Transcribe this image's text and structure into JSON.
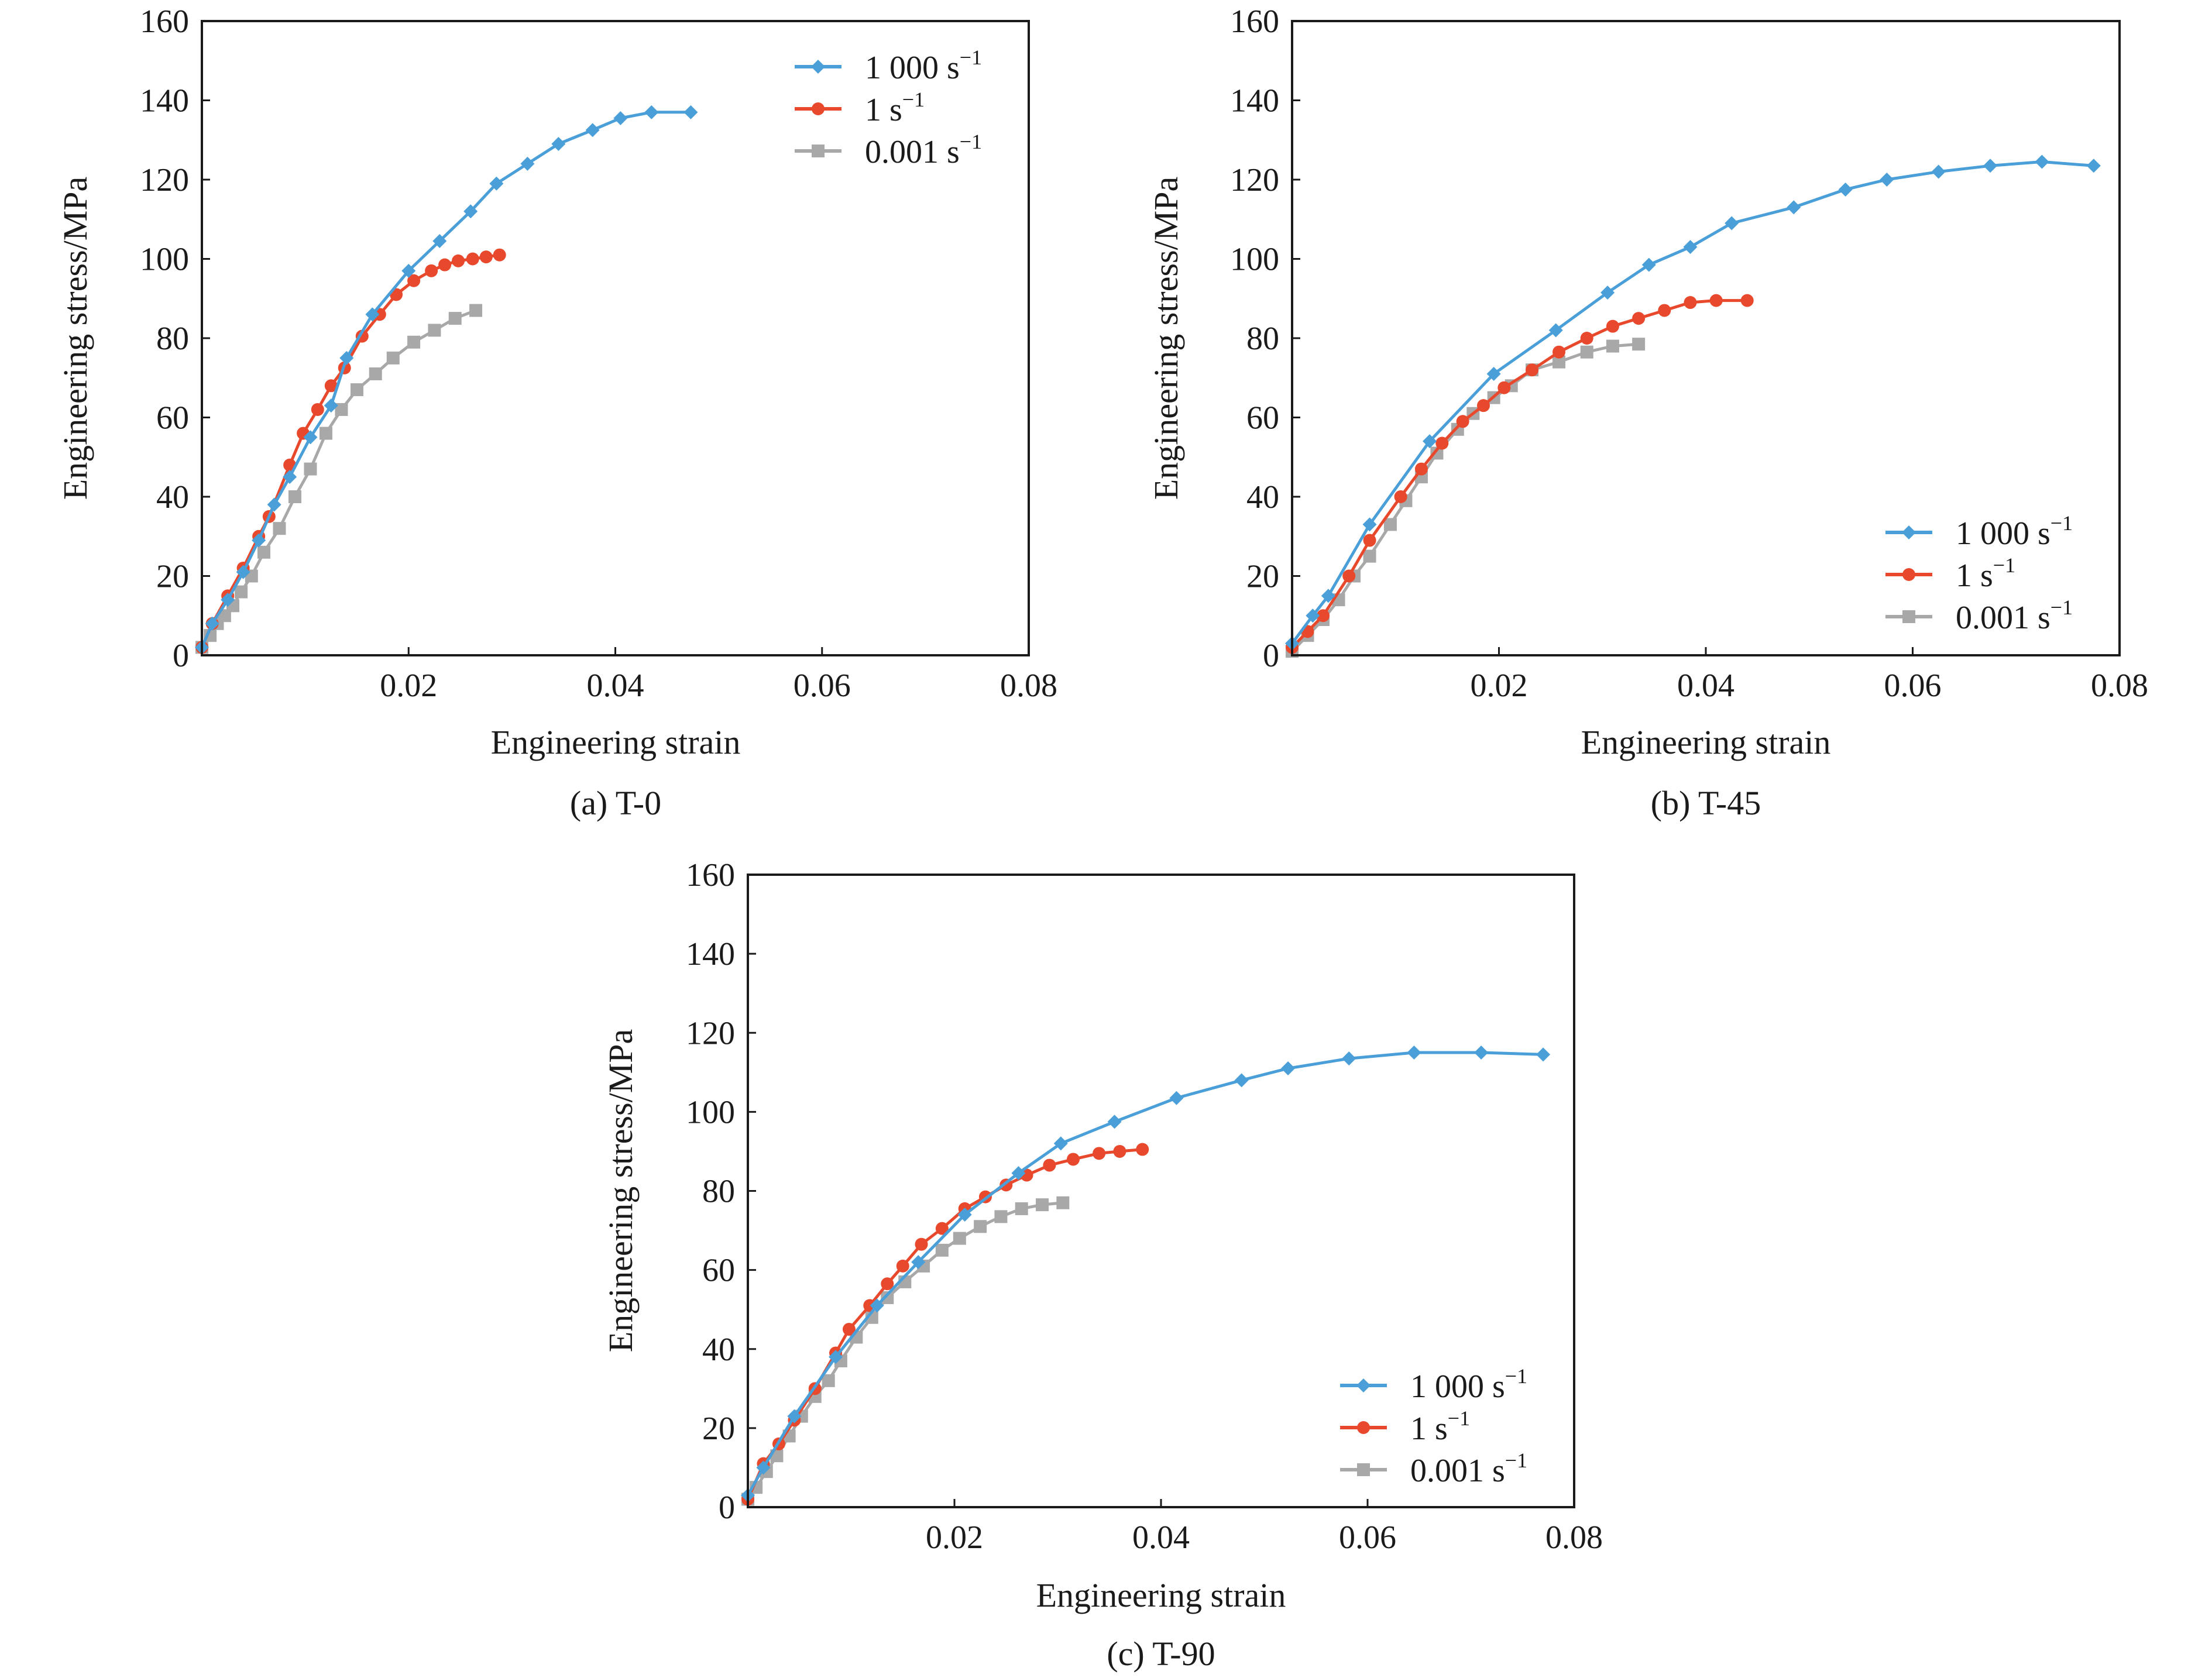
{
  "chart_data": [
    {
      "type": "line",
      "caption": "(a) T-0",
      "xlabel": "Engineering strain",
      "ylabel": "Engineering stress/MPa",
      "xlim": [
        0,
        0.08
      ],
      "ylim": [
        0,
        160
      ],
      "xticks": [
        0.02,
        0.04,
        0.06,
        0.08
      ],
      "xtick_labels": [
        "0.02",
        "0.04",
        "0.06",
        "0.08"
      ],
      "yticks": [
        0,
        20,
        40,
        60,
        80,
        100,
        120,
        140,
        160
      ],
      "ytick_labels": [
        "0",
        "20",
        "40",
        "60",
        "80",
        "100",
        "120",
        "140",
        "160"
      ],
      "grid": false,
      "legend_position": "top-right",
      "series": [
        {
          "name": "1 000 s",
          "sup": "−1",
          "color": "#4a9fd8",
          "marker": "diamond",
          "x": [
            0,
            0.001,
            0.0025,
            0.004,
            0.0055,
            0.007,
            0.0085,
            0.0105,
            0.0125,
            0.014,
            0.0165,
            0.02,
            0.023,
            0.026,
            0.0285,
            0.0315,
            0.0345,
            0.0378,
            0.0405,
            0.0435,
            0.0473
          ],
          "y": [
            2,
            8,
            14,
            21,
            29,
            38,
            45,
            55,
            63,
            75,
            86,
            97,
            104.5,
            112,
            119,
            124,
            129,
            132.5,
            135.5,
            137,
            137
          ]
        },
        {
          "name": "1 s",
          "sup": "−1",
          "color": "#e8482c",
          "marker": "circle",
          "x": [
            0,
            0.001,
            0.0025,
            0.004,
            0.0055,
            0.0065,
            0.0085,
            0.0098,
            0.0112,
            0.0125,
            0.0138,
            0.0155,
            0.0172,
            0.0188,
            0.0205,
            0.0222,
            0.0235,
            0.0248,
            0.0262,
            0.0275,
            0.0288
          ],
          "y": [
            2,
            8,
            15,
            22,
            30,
            35,
            48,
            56,
            62,
            68,
            72.5,
            80.5,
            86,
            91,
            94.5,
            97,
            98.5,
            99.5,
            100,
            100.5,
            101
          ]
        },
        {
          "name": "0.001 s",
          "sup": "−1",
          "color": "#a8a8a8",
          "marker": "square",
          "x": [
            0,
            0.0008,
            0.0015,
            0.0022,
            0.003,
            0.0038,
            0.0048,
            0.006,
            0.0075,
            0.009,
            0.0105,
            0.012,
            0.0135,
            0.015,
            0.0168,
            0.0185,
            0.0205,
            0.0225,
            0.0245,
            0.0265
          ],
          "y": [
            2,
            5,
            8,
            10,
            12.5,
            16,
            20,
            26,
            32,
            40,
            47,
            56,
            62,
            67,
            71,
            75,
            79,
            82,
            85,
            87
          ]
        }
      ]
    },
    {
      "type": "line",
      "caption": "(b) T-45",
      "xlabel": "Engineering strain",
      "ylabel": "Engineering stress/MPa",
      "xlim": [
        0,
        0.08
      ],
      "ylim": [
        0,
        160
      ],
      "xticks": [
        0.02,
        0.04,
        0.06,
        0.08
      ],
      "xtick_labels": [
        "0.02",
        "0.04",
        "0.06",
        "0.08"
      ],
      "yticks": [
        0,
        20,
        40,
        60,
        80,
        100,
        120,
        140,
        160
      ],
      "ytick_labels": [
        "0",
        "20",
        "40",
        "60",
        "80",
        "100",
        "120",
        "140",
        "160"
      ],
      "grid": false,
      "legend_position": "bottom-right",
      "series": [
        {
          "name": "1 000 s",
          "sup": "−1",
          "color": "#4a9fd8",
          "marker": "diamond",
          "x": [
            0,
            0.002,
            0.0035,
            0.0075,
            0.0133,
            0.0195,
            0.0255,
            0.0305,
            0.0345,
            0.0385,
            0.0425,
            0.0485,
            0.0535,
            0.0575,
            0.0625,
            0.0675,
            0.0725,
            0.0775
          ],
          "y": [
            3,
            10,
            15,
            33,
            54,
            71,
            82,
            91.5,
            98.5,
            103,
            109,
            113,
            117.5,
            120,
            122,
            123.5,
            124.5,
            123.5
          ]
        },
        {
          "name": "1 s",
          "sup": "−1",
          "color": "#e8482c",
          "marker": "circle",
          "x": [
            0,
            0.0015,
            0.003,
            0.0055,
            0.0075,
            0.0105,
            0.0125,
            0.0145,
            0.0165,
            0.0185,
            0.0205,
            0.0232,
            0.0258,
            0.0285,
            0.031,
            0.0335,
            0.036,
            0.0385,
            0.041,
            0.044
          ],
          "y": [
            2,
            6,
            10,
            20,
            29,
            40,
            47,
            53.5,
            59,
            63,
            67.5,
            72,
            76.5,
            80,
            83,
            85,
            87,
            89,
            89.5,
            89.5
          ]
        },
        {
          "name": "0.001 s",
          "sup": "−1",
          "color": "#a8a8a8",
          "marker": "square",
          "x": [
            0,
            0.0015,
            0.003,
            0.0045,
            0.006,
            0.0075,
            0.0095,
            0.011,
            0.0125,
            0.014,
            0.016,
            0.0175,
            0.0195,
            0.0212,
            0.0232,
            0.0258,
            0.0285,
            0.031,
            0.0335
          ],
          "y": [
            1,
            5,
            9,
            14,
            20,
            25,
            33,
            39,
            45,
            51,
            57,
            61,
            65,
            68,
            72,
            74,
            76.5,
            78,
            78.5
          ]
        }
      ]
    },
    {
      "type": "line",
      "caption": "(c) T-90",
      "xlabel": "Engineering strain",
      "ylabel": "Engineering stress/MPa",
      "xlim": [
        0,
        0.08
      ],
      "ylim": [
        0,
        160
      ],
      "xticks": [
        0.02,
        0.04,
        0.06,
        0.08
      ],
      "xtick_labels": [
        "0.02",
        "0.04",
        "0.06",
        "0.08"
      ],
      "yticks": [
        0,
        20,
        40,
        60,
        80,
        100,
        120,
        140,
        160
      ],
      "ytick_labels": [
        "0",
        "20",
        "40",
        "60",
        "80",
        "100",
        "120",
        "140",
        "160"
      ],
      "grid": false,
      "legend_position": "bottom-right",
      "series": [
        {
          "name": "1 000 s",
          "sup": "−1",
          "color": "#4a9fd8",
          "marker": "diamond",
          "x": [
            0,
            0.0015,
            0.0045,
            0.0085,
            0.0125,
            0.0165,
            0.021,
            0.0262,
            0.0303,
            0.0355,
            0.0415,
            0.0478,
            0.0523,
            0.0582,
            0.0645,
            0.071,
            0.077
          ],
          "y": [
            3,
            10,
            23,
            38,
            51,
            62,
            74,
            84.5,
            92,
            97.5,
            103.5,
            108,
            111,
            113.5,
            115,
            115,
            114.5
          ]
        },
        {
          "name": "1 s",
          "sup": "−1",
          "color": "#e8482c",
          "marker": "circle",
          "x": [
            0,
            0.0015,
            0.003,
            0.0045,
            0.0065,
            0.0085,
            0.0098,
            0.0118,
            0.0135,
            0.015,
            0.0168,
            0.0188,
            0.021,
            0.023,
            0.025,
            0.027,
            0.0292,
            0.0315,
            0.034,
            0.036,
            0.0382
          ],
          "y": [
            2,
            11,
            16,
            22,
            30,
            39,
            45,
            51,
            56.5,
            61,
            66.5,
            70.5,
            75.5,
            78.5,
            81.5,
            84,
            86.5,
            88,
            89.5,
            90,
            90.5
          ]
        },
        {
          "name": "0.001 s",
          "sup": "−1",
          "color": "#a8a8a8",
          "marker": "square",
          "x": [
            0,
            0.0008,
            0.0018,
            0.0028,
            0.004,
            0.0052,
            0.0065,
            0.0078,
            0.009,
            0.0105,
            0.012,
            0.0135,
            0.0152,
            0.017,
            0.0188,
            0.0205,
            0.0225,
            0.0245,
            0.0265,
            0.0285,
            0.0305
          ],
          "y": [
            2,
            5,
            9,
            13,
            18,
            23,
            28,
            32,
            37,
            43,
            48,
            53,
            57,
            61,
            65,
            68,
            71,
            73.5,
            75.5,
            76.5,
            77
          ]
        }
      ]
    }
  ]
}
